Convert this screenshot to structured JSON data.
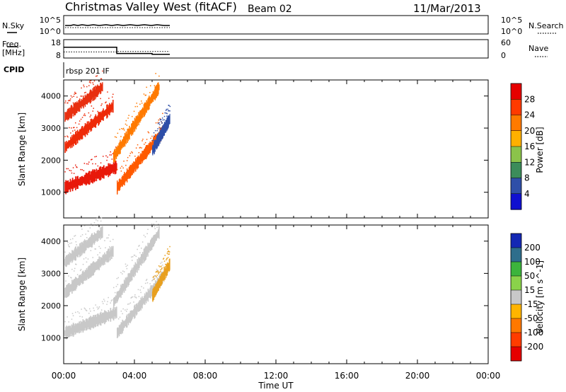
{
  "header": {
    "title": "Christmas Valley West (fitACF)",
    "beam": "Beam 02",
    "date": "11/Mar/2013"
  },
  "nsky_panel": {
    "label": "N.Sky",
    "left_ticks": [
      "10^5",
      "10^0"
    ],
    "right_ticks": [
      "10^5",
      "10^0"
    ],
    "right_label": "N.Search"
  },
  "freq_panel": {
    "label_line1": "Freq.",
    "label_line2": "[MHz]",
    "left_ticks": [
      "18",
      "8"
    ],
    "right_ticks": [
      "60",
      "0"
    ],
    "right_label": "Nave",
    "solid_freq_mhz": [
      {
        "t": 0.0,
        "v": 14.0
      },
      {
        "t": 3.0,
        "v": 14.0
      },
      {
        "t": 3.0,
        "v": 10.0
      },
      {
        "t": 5.0,
        "v": 10.0
      },
      {
        "t": 5.0,
        "v": 9.5
      },
      {
        "t": 6.0,
        "v": 9.5
      }
    ],
    "dotted_nave": [
      {
        "t": 0.0,
        "v": 18
      },
      {
        "t": 3.0,
        "v": 18
      },
      {
        "t": 3.0,
        "v": 20
      },
      {
        "t": 6.0,
        "v": 20
      }
    ]
  },
  "cpid": {
    "label": "CPID",
    "program": "rbsp 201 IF"
  },
  "chart_data": [
    {
      "type": "heatmap",
      "title": "",
      "xlabel": "",
      "ylabel": "Slant Range [km]",
      "xlim_hours": [
        0,
        24
      ],
      "ylim_km": [
        200,
        4500
      ],
      "y_ticks": [
        "1000",
        "2000",
        "3000",
        "4000"
      ],
      "colorbar": {
        "label": "Power [dB]",
        "ticks": [
          "28",
          "24",
          "20",
          "16",
          "12",
          "8",
          "4"
        ],
        "colors_top_to_bottom": [
          "#e60000",
          "#ff3a00",
          "#ff7a00",
          "#ffb000",
          "#8bc34a",
          "#3c8c5a",
          "#2f4fa8",
          "#1010d0"
        ]
      },
      "echo_bands": [
        {
          "t_start": 0.05,
          "t_end": 3.0,
          "r_start": 1150,
          "r_end": 1800,
          "color": "#e8190a"
        },
        {
          "t_start": 3.0,
          "t_end": 5.6,
          "r_start": 1150,
          "r_end": 2900,
          "color": "#ff5a00"
        },
        {
          "t_start": 0.05,
          "t_end": 2.8,
          "r_start": 2400,
          "r_end": 3700,
          "color": "#ee2a08"
        },
        {
          "t_start": 2.8,
          "t_end": 5.4,
          "r_start": 2100,
          "r_end": 4300,
          "color": "#ff7a00"
        },
        {
          "t_start": 0.05,
          "t_end": 2.2,
          "r_start": 3350,
          "r_end": 4300,
          "color": "#e83010"
        },
        {
          "t_start": 5.0,
          "t_end": 6.0,
          "r_start": 2300,
          "r_end": 3300,
          "color": "#2f4fa8"
        }
      ]
    },
    {
      "type": "heatmap",
      "title": "",
      "xlabel": "Time UT",
      "ylabel": "Slant Range [km]",
      "xlim_hours": [
        0,
        24
      ],
      "ylim_km": [
        200,
        4500
      ],
      "y_ticks": [
        "1000",
        "2000",
        "3000",
        "4000"
      ],
      "x_ticks": [
        "00:00",
        "04:00",
        "08:00",
        "12:00",
        "16:00",
        "20:00",
        "00:00"
      ],
      "colorbar": {
        "label": "Velocity [m s^-1]",
        "ticks": [
          "200",
          "100",
          "50",
          "15",
          "-15",
          "-50",
          "-100",
          "-200"
        ],
        "colors_top_to_bottom": [
          "#1428b4",
          "#2e6e8c",
          "#3cb43c",
          "#8ad24a",
          "#c8c8c8",
          "#ffb400",
          "#ff7800",
          "#ff3c00",
          "#e60000"
        ]
      },
      "echo_bands": [
        {
          "t_start": 0.05,
          "t_end": 3.0,
          "r_start": 1150,
          "r_end": 1800,
          "color": "#c8c8c8"
        },
        {
          "t_start": 3.0,
          "t_end": 5.6,
          "r_start": 1150,
          "r_end": 2900,
          "color": "#c8c8c8"
        },
        {
          "t_start": 0.05,
          "t_end": 2.8,
          "r_start": 2400,
          "r_end": 3700,
          "color": "#c8c8c8"
        },
        {
          "t_start": 2.8,
          "t_end": 5.4,
          "r_start": 2100,
          "r_end": 4300,
          "color": "#c8c8c8"
        },
        {
          "t_start": 0.05,
          "t_end": 2.2,
          "r_start": 3350,
          "r_end": 4300,
          "color": "#c8c8c8"
        },
        {
          "t_start": 5.0,
          "t_end": 6.0,
          "r_start": 2300,
          "r_end": 3300,
          "color": "#e8a020"
        }
      ]
    }
  ]
}
